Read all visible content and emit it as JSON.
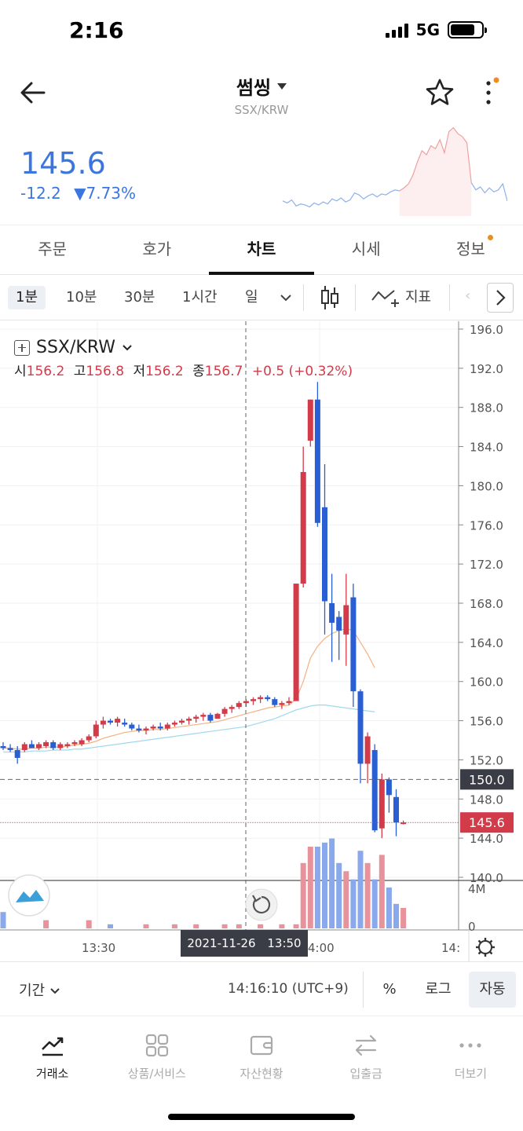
{
  "status": {
    "time": "2:16",
    "network": "5G"
  },
  "header": {
    "title": "썸씽",
    "subtitle": "SSX/KRW"
  },
  "price": {
    "last": "145.6",
    "change": "-12.2",
    "change_pct": "▼7.73%"
  },
  "tabs": [
    {
      "label": "주문"
    },
    {
      "label": "호가"
    },
    {
      "label": "차트",
      "active": true
    },
    {
      "label": "시세"
    },
    {
      "label": "정보",
      "badge": true
    }
  ],
  "intervals": {
    "items": [
      "1분",
      "10분",
      "30분",
      "1시간",
      "일"
    ],
    "selected": "1분",
    "indicator_label": "지표"
  },
  "chart": {
    "symbol": "SSX/KRW",
    "ohlc": {
      "open_label": "시",
      "open": "156.2",
      "high_label": "고",
      "high": "156.8",
      "low_label": "저",
      "low": "156.2",
      "close_label": "종",
      "close": "156.7",
      "change": "+0.5 (+0.32%)"
    },
    "crosshair_date": "2021-11-26",
    "crosshair_time": "13:50",
    "crosshair_price": "150.0",
    "last_price_label": "145.6",
    "volume_axis_top": "4M",
    "volume_axis_zero": "0",
    "x_labels": [
      "13:30",
      "4:00",
      "14:"
    ],
    "y_labels": [
      "196.0",
      "192.0",
      "188.0",
      "184.0",
      "180.0",
      "176.0",
      "172.0",
      "168.0",
      "164.0",
      "160.0",
      "156.0",
      "152.0",
      "148.0",
      "144.0",
      "140.0"
    ]
  },
  "chart_data": {
    "type": "candlestick",
    "pair": "SSX/KRW",
    "ylim": [
      140,
      196
    ],
    "candles": [
      {
        "o": 153.4,
        "h": 153.8,
        "l": 153.0,
        "c": 153.2
      },
      {
        "o": 153.2,
        "h": 153.6,
        "l": 152.8,
        "c": 153.0
      },
      {
        "o": 153.0,
        "h": 153.4,
        "l": 151.6,
        "c": 152.2
      },
      {
        "o": 153.0,
        "h": 153.8,
        "l": 152.8,
        "c": 153.6
      },
      {
        "o": 153.6,
        "h": 154.0,
        "l": 153.2,
        "c": 153.2
      },
      {
        "o": 153.2,
        "h": 153.8,
        "l": 153.0,
        "c": 153.6
      },
      {
        "o": 153.4,
        "h": 154.0,
        "l": 153.2,
        "c": 153.8
      },
      {
        "o": 153.8,
        "h": 154.0,
        "l": 153.0,
        "c": 153.2
      },
      {
        "o": 153.2,
        "h": 153.8,
        "l": 153.0,
        "c": 153.6
      },
      {
        "o": 153.4,
        "h": 153.8,
        "l": 153.2,
        "c": 153.6
      },
      {
        "o": 153.6,
        "h": 154.0,
        "l": 153.4,
        "c": 153.8
      },
      {
        "o": 153.6,
        "h": 154.2,
        "l": 153.4,
        "c": 154.0
      },
      {
        "o": 154.0,
        "h": 154.6,
        "l": 153.8,
        "c": 154.4
      },
      {
        "o": 154.4,
        "h": 156.0,
        "l": 154.2,
        "c": 155.6
      },
      {
        "o": 155.6,
        "h": 156.4,
        "l": 155.2,
        "c": 156.0
      },
      {
        "o": 156.0,
        "h": 156.2,
        "l": 155.6,
        "c": 155.8
      },
      {
        "o": 155.8,
        "h": 156.4,
        "l": 155.4,
        "c": 156.2
      },
      {
        "o": 155.8,
        "h": 156.2,
        "l": 155.4,
        "c": 155.6
      },
      {
        "o": 155.6,
        "h": 155.8,
        "l": 155.0,
        "c": 155.2
      },
      {
        "o": 155.2,
        "h": 155.6,
        "l": 154.8,
        "c": 155.0
      },
      {
        "o": 155.0,
        "h": 155.4,
        "l": 154.6,
        "c": 155.2
      },
      {
        "o": 155.2,
        "h": 155.6,
        "l": 155.0,
        "c": 155.4
      },
      {
        "o": 155.4,
        "h": 155.8,
        "l": 155.0,
        "c": 155.2
      },
      {
        "o": 155.2,
        "h": 155.8,
        "l": 155.0,
        "c": 155.6
      },
      {
        "o": 155.6,
        "h": 156.0,
        "l": 155.4,
        "c": 155.8
      },
      {
        "o": 155.8,
        "h": 156.2,
        "l": 155.6,
        "c": 156.0
      },
      {
        "o": 156.0,
        "h": 156.4,
        "l": 155.6,
        "c": 156.2
      },
      {
        "o": 156.2,
        "h": 156.6,
        "l": 155.8,
        "c": 156.4
      },
      {
        "o": 156.4,
        "h": 156.8,
        "l": 156.0,
        "c": 156.6
      },
      {
        "o": 156.6,
        "h": 156.8,
        "l": 155.8,
        "c": 156.0
      },
      {
        "o": 156.2,
        "h": 156.8,
        "l": 156.2,
        "c": 156.7
      },
      {
        "o": 156.7,
        "h": 157.4,
        "l": 156.4,
        "c": 157.2
      },
      {
        "o": 157.2,
        "h": 157.6,
        "l": 156.8,
        "c": 157.4
      },
      {
        "o": 157.4,
        "h": 158.0,
        "l": 157.2,
        "c": 157.8
      },
      {
        "o": 157.8,
        "h": 158.2,
        "l": 157.4,
        "c": 158.0
      },
      {
        "o": 158.0,
        "h": 158.4,
        "l": 157.6,
        "c": 158.2
      },
      {
        "o": 158.2,
        "h": 158.6,
        "l": 157.8,
        "c": 158.4
      },
      {
        "o": 158.4,
        "h": 158.6,
        "l": 158.0,
        "c": 158.2
      },
      {
        "o": 158.2,
        "h": 158.4,
        "l": 157.4,
        "c": 157.6
      },
      {
        "o": 157.6,
        "h": 158.0,
        "l": 157.2,
        "c": 157.8
      },
      {
        "o": 157.8,
        "h": 158.4,
        "l": 157.6,
        "c": 158.0
      },
      {
        "o": 158.0,
        "h": 170.0,
        "l": 158.0,
        "c": 170.0
      },
      {
        "o": 170.0,
        "h": 184.0,
        "l": 169.6,
        "c": 181.4
      },
      {
        "o": 184.6,
        "h": 188.8,
        "l": 184.0,
        "c": 188.8
      },
      {
        "o": 188.8,
        "h": 190.6,
        "l": 175.8,
        "c": 176.2
      },
      {
        "o": 177.8,
        "h": 182.2,
        "l": 164.8,
        "c": 168.2
      },
      {
        "o": 168.0,
        "h": 171.0,
        "l": 162.0,
        "c": 166.0
      },
      {
        "o": 166.6,
        "h": 167.2,
        "l": 162.2,
        "c": 165.2
      },
      {
        "o": 164.8,
        "h": 171.0,
        "l": 161.6,
        "c": 167.8
      },
      {
        "o": 168.6,
        "h": 170.0,
        "l": 157.4,
        "c": 159.0
      },
      {
        "o": 159.0,
        "h": 159.2,
        "l": 149.6,
        "c": 151.6
      },
      {
        "o": 151.6,
        "h": 154.8,
        "l": 149.6,
        "c": 154.4
      },
      {
        "o": 153.0,
        "h": 153.6,
        "l": 144.6,
        "c": 144.8
      },
      {
        "o": 145.0,
        "h": 150.6,
        "l": 144.0,
        "c": 150.0
      },
      {
        "o": 150.0,
        "h": 150.2,
        "l": 146.6,
        "c": 148.4
      },
      {
        "o": 148.2,
        "h": 149.0,
        "l": 144.2,
        "c": 145.6
      },
      {
        "o": 145.6,
        "h": 145.8,
        "l": 145.4,
        "c": 145.6
      }
    ],
    "ma_short": [
      153.2,
      153.2,
      153.1,
      153.1,
      153.2,
      153.2,
      153.3,
      153.3,
      153.3,
      153.4,
      153.5,
      153.6,
      153.7,
      153.9,
      154.2,
      154.4,
      154.6,
      154.8,
      154.9,
      155.0,
      155.0,
      155.1,
      155.1,
      155.2,
      155.3,
      155.4,
      155.5,
      155.6,
      155.7,
      155.8,
      155.9,
      156.1,
      156.3,
      156.5,
      156.7,
      156.9,
      157.1,
      157.3,
      157.4,
      157.5,
      157.6,
      158.2,
      160.0,
      162.4,
      163.6,
      164.4,
      164.9,
      165.2,
      165.4,
      165.2,
      164.0,
      162.8,
      161.4
    ],
    "ma_long": [
      152.8,
      152.8,
      152.8,
      152.8,
      152.9,
      152.9,
      152.9,
      153.0,
      153.0,
      153.0,
      153.1,
      153.1,
      153.2,
      153.3,
      153.4,
      153.5,
      153.6,
      153.7,
      153.8,
      153.9,
      154.0,
      154.1,
      154.2,
      154.3,
      154.4,
      154.5,
      154.6,
      154.7,
      154.8,
      154.9,
      155.0,
      155.1,
      155.2,
      155.3,
      155.4,
      155.6,
      155.8,
      156.0,
      156.2,
      156.5,
      156.8,
      157.1,
      157.3,
      157.5,
      157.6,
      157.6,
      157.5,
      157.4,
      157.3,
      157.2,
      157.1,
      157.0,
      156.9
    ],
    "volume": [
      0.4,
      0,
      0,
      0,
      0,
      0,
      0.2,
      0,
      0,
      0,
      0,
      0,
      0.2,
      0,
      0,
      0.1,
      0,
      0,
      0,
      0,
      0.1,
      0,
      0,
      0,
      0.1,
      0,
      0,
      0.1,
      0,
      0,
      0,
      0.1,
      0,
      0.1,
      0,
      0,
      0.1,
      0,
      0,
      0.1,
      0,
      0.1,
      1.6,
      2.0,
      2.0,
      2.1,
      2.2,
      1.6,
      1.4,
      1.2,
      1.9,
      1.6,
      1.2,
      1.8,
      1.0,
      0.6,
      0.5
    ],
    "sparkline": [
      149,
      148.6,
      149.2,
      148,
      148.4,
      148.2,
      147.8,
      148.6,
      148.2,
      148.8,
      148.4,
      149.4,
      149.0,
      149.6,
      148.8,
      149.2,
      150.6,
      150.2,
      149.4,
      150.0,
      150.4,
      149.8,
      150.4,
      150.2,
      150.8,
      151.2,
      151.0,
      151.6,
      152.4,
      154.2,
      156.8,
      159.0,
      158.2,
      160.0,
      159.4,
      161.2,
      158.6,
      162.8,
      163.6,
      162.4,
      161.8,
      160.6,
      152.6,
      151.2,
      151.8,
      150.6,
      151.6,
      150.8,
      151.2,
      152.4,
      149.0
    ]
  },
  "bottom": {
    "period_label": "기간",
    "time": "14:16:10 (UTC+9)",
    "percent": "%",
    "log": "로그",
    "auto": "자동"
  },
  "nav": [
    {
      "label": "거래소",
      "icon": "trend-icon",
      "active": true
    },
    {
      "label": "상품/서비스",
      "icon": "grid-icon"
    },
    {
      "label": "자산현황",
      "icon": "wallet-icon"
    },
    {
      "label": "입출금",
      "icon": "transfer-icon"
    },
    {
      "label": "더보기",
      "icon": "more-dots-icon"
    }
  ],
  "colors": {
    "up": "#d23c4a",
    "down": "#2a5fd4",
    "ma_short": "#f4b183",
    "ma_long": "#9fd8ee",
    "price_blue": "#3b76e0"
  }
}
